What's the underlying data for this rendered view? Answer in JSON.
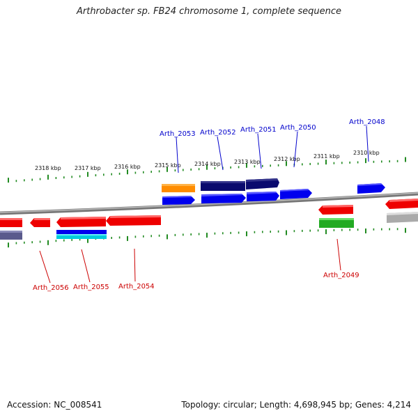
{
  "title": "Arthrobacter sp. FB24 chromosome 1, complete sequence",
  "footer": {
    "accession": "Accession: NC_008541",
    "summary": "Topology: circular; Length: 4,698,945 bp; Genes: 4,214"
  },
  "colors": {
    "backbone": "#888888",
    "tick": "#228B22",
    "forward_label": "#0000CC",
    "reverse_label": "#CC0000",
    "forward_gene": "#0000EE",
    "dark_gene": "#0A0A6E",
    "reverse_gene": "#EE0000",
    "orange_gene": "#FF8C00",
    "green_gene": "#22AA22",
    "cyan_gene": "#00CCDD",
    "grey_gene": "#AAAAAA",
    "slate_gene": "#5A5A8C"
  },
  "tick_labels": [
    "2318 kbp",
    "2317 kbp",
    "2316 kbp",
    "2315 kbp",
    "2314 kbp",
    "2313 kbp",
    "2312 kbp",
    "2311 kbp",
    "2310 kbp"
  ],
  "forward_labels": [
    "Arth_2053",
    "Arth_2052",
    "Arth_2051",
    "Arth_2050",
    "Arth_2048"
  ],
  "reverse_labels": [
    "Arth_2056",
    "Arth_2055",
    "Arth_2054",
    "Arth_2049"
  ]
}
